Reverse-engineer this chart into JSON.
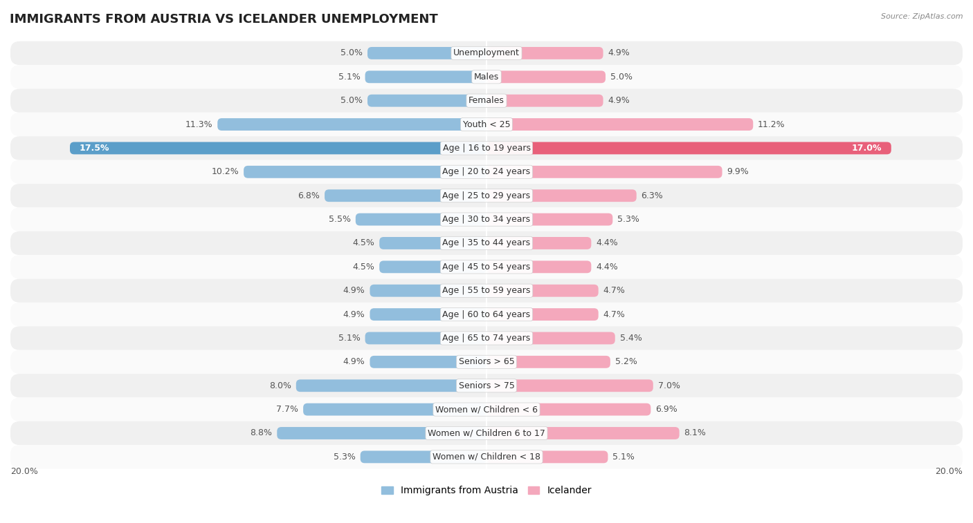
{
  "title": "IMMIGRANTS FROM AUSTRIA VS ICELANDER UNEMPLOYMENT",
  "source": "Source: ZipAtlas.com",
  "categories": [
    "Unemployment",
    "Males",
    "Females",
    "Youth < 25",
    "Age | 16 to 19 years",
    "Age | 20 to 24 years",
    "Age | 25 to 29 years",
    "Age | 30 to 34 years",
    "Age | 35 to 44 years",
    "Age | 45 to 54 years",
    "Age | 55 to 59 years",
    "Age | 60 to 64 years",
    "Age | 65 to 74 years",
    "Seniors > 65",
    "Seniors > 75",
    "Women w/ Children < 6",
    "Women w/ Children 6 to 17",
    "Women w/ Children < 18"
  ],
  "austria_values": [
    5.0,
    5.1,
    5.0,
    11.3,
    17.5,
    10.2,
    6.8,
    5.5,
    4.5,
    4.5,
    4.9,
    4.9,
    5.1,
    4.9,
    8.0,
    7.7,
    8.8,
    5.3
  ],
  "iceland_values": [
    4.9,
    5.0,
    4.9,
    11.2,
    17.0,
    9.9,
    6.3,
    5.3,
    4.4,
    4.4,
    4.7,
    4.7,
    5.4,
    5.2,
    7.0,
    6.9,
    8.1,
    5.1
  ],
  "austria_color": "#92bedd",
  "iceland_color": "#f4a8bc",
  "austria_highlight_color": "#5b9ec9",
  "iceland_highlight_color": "#e8607a",
  "highlight_row": 4,
  "xlim": 20.0,
  "bar_height": 0.52,
  "background_color": "#ffffff",
  "row_bg_odd": "#f0f0f0",
  "row_bg_even": "#fafafa",
  "legend_austria": "Immigrants from Austria",
  "legend_iceland": "Icelander",
  "axis_label_left": "20.0%",
  "axis_label_right": "20.0%",
  "title_fontsize": 13,
  "cat_fontsize": 9,
  "value_fontsize": 9,
  "axis_fontsize": 9,
  "source_fontsize": 8
}
